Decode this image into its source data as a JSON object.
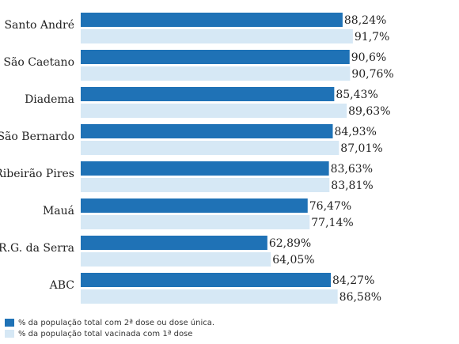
{
  "chart_data": {
    "type": "bar",
    "orientation": "horizontal",
    "categories": [
      "Santo André",
      "São Caetano",
      "Diadema",
      "São Bernardo",
      "Ribeirão Pires",
      "Mauá",
      "R.G. da Serra",
      "ABC"
    ],
    "series": [
      {
        "name": "% da população total com 2ª dose ou dose única.",
        "color": "#1f72b6",
        "values": [
          88.24,
          90.6,
          85.43,
          84.93,
          83.63,
          76.47,
          62.89,
          84.27
        ],
        "labels": [
          "88,24%",
          "90,6%",
          "85,43%",
          "84,93%",
          "83,63%",
          "76,47%",
          "62,89%",
          "84,27%"
        ]
      },
      {
        "name": "% da população total vacinada com 1ª dose",
        "color": "#d6e8f5",
        "values": [
          91.7,
          90.76,
          89.63,
          87.01,
          83.81,
          77.14,
          64.05,
          86.58
        ],
        "labels": [
          "91,7%",
          "90,76%",
          "89,63%",
          "87,01%",
          "83,81%",
          "77,14%",
          "64,05%",
          "86,58%"
        ]
      }
    ],
    "xlim": [
      0,
      100
    ],
    "grid": false,
    "legend_position": "bottom-left"
  }
}
